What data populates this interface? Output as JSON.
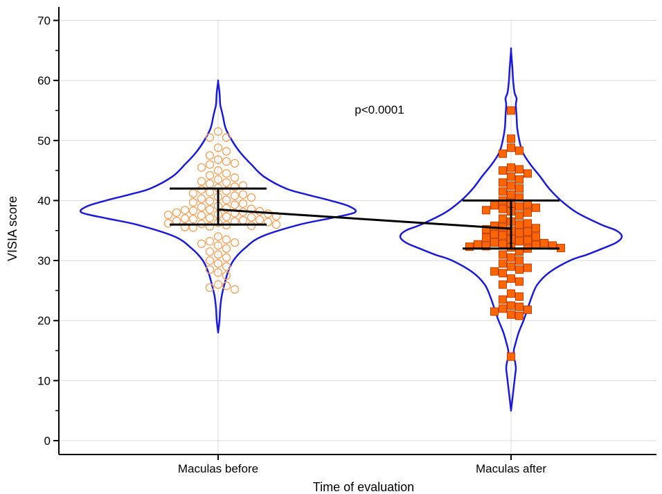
{
  "chart_data": {
    "type": "violin",
    "xlabel": "Time of evaluation",
    "ylabel": "VISIA score",
    "ylim": [
      0,
      70
    ],
    "yticks": [
      0,
      10,
      20,
      30,
      40,
      50,
      60,
      70
    ],
    "grid": true,
    "annotation": "p<0.0001",
    "colors": {
      "violin": "#1a1adb",
      "before_marker": "#f4a460",
      "after_marker_fill": "#ff6600",
      "after_marker_edge": "#c03c00",
      "summary": "#000000",
      "grid": "#d9d9d9"
    },
    "groups": [
      {
        "name": "Maculas before",
        "marker": "open-circle",
        "mean": 38.5,
        "q1": 36.0,
        "q3": 42.0,
        "y_range": [
          18.0,
          59.8
        ],
        "points": [
          51.5,
          50.5,
          50.5,
          48.8,
          48.2,
          47.5,
          46.8,
          46.5,
          46.2,
          46.0,
          45.5,
          45.0,
          44.5,
          44.2,
          43.8,
          43.5,
          43.2,
          43.0,
          42.8,
          42.5,
          42.3,
          42.1,
          41.8,
          41.6,
          41.4,
          41.2,
          41.0,
          40.8,
          40.6,
          40.5,
          40.3,
          40.1,
          39.9,
          39.7,
          39.5,
          39.3,
          39.1,
          38.9,
          38.7,
          38.6,
          38.5,
          38.4,
          38.3,
          38.2,
          38.1,
          38.0,
          37.9,
          37.8,
          37.7,
          37.6,
          37.5,
          37.4,
          37.3,
          37.2,
          37.1,
          37.0,
          36.9,
          36.8,
          36.7,
          36.6,
          36.5,
          36.4,
          36.3,
          36.2,
          36.1,
          36.0,
          35.9,
          35.8,
          35.7,
          35.6,
          35.5,
          34.0,
          33.5,
          33.2,
          33.0,
          32.8,
          32.5,
          32.0,
          31.5,
          31.0,
          30.5,
          30.0,
          29.5,
          29.0,
          28.5,
          28.0,
          27.5,
          26.0,
          25.8,
          25.5,
          25.2
        ]
      },
      {
        "name": "Maculas after",
        "marker": "filled-square",
        "mean": 35.3,
        "q1": 32.0,
        "q3": 40.0,
        "y_range": [
          5.0,
          65.0
        ],
        "points": [
          55.0,
          50.3,
          48.8,
          48.3,
          47.8,
          45.5,
          45.2,
          45.0,
          44.5,
          44.0,
          43.5,
          43.0,
          42.5,
          42.0,
          41.5,
          41.0,
          40.5,
          40.0,
          39.6,
          39.4,
          39.2,
          39.0,
          38.8,
          38.6,
          38.4,
          38.2,
          38.0,
          37.5,
          37.0,
          36.5,
          36.2,
          36.0,
          35.8,
          35.6,
          35.4,
          35.2,
          35.0,
          34.8,
          34.6,
          34.4,
          34.2,
          34.0,
          33.8,
          33.6,
          33.4,
          33.2,
          33.0,
          32.9,
          32.8,
          32.7,
          32.6,
          32.5,
          32.4,
          32.3,
          32.2,
          32.1,
          32.0,
          31.5,
          31.0,
          30.5,
          30.0,
          29.5,
          29.0,
          28.8,
          28.5,
          28.2,
          27.9,
          27.0,
          26.5,
          26.0,
          24.5,
          24.0,
          23.5,
          22.5,
          22.3,
          22.0,
          21.8,
          21.5,
          21.0,
          20.8,
          14.0
        ]
      }
    ]
  }
}
